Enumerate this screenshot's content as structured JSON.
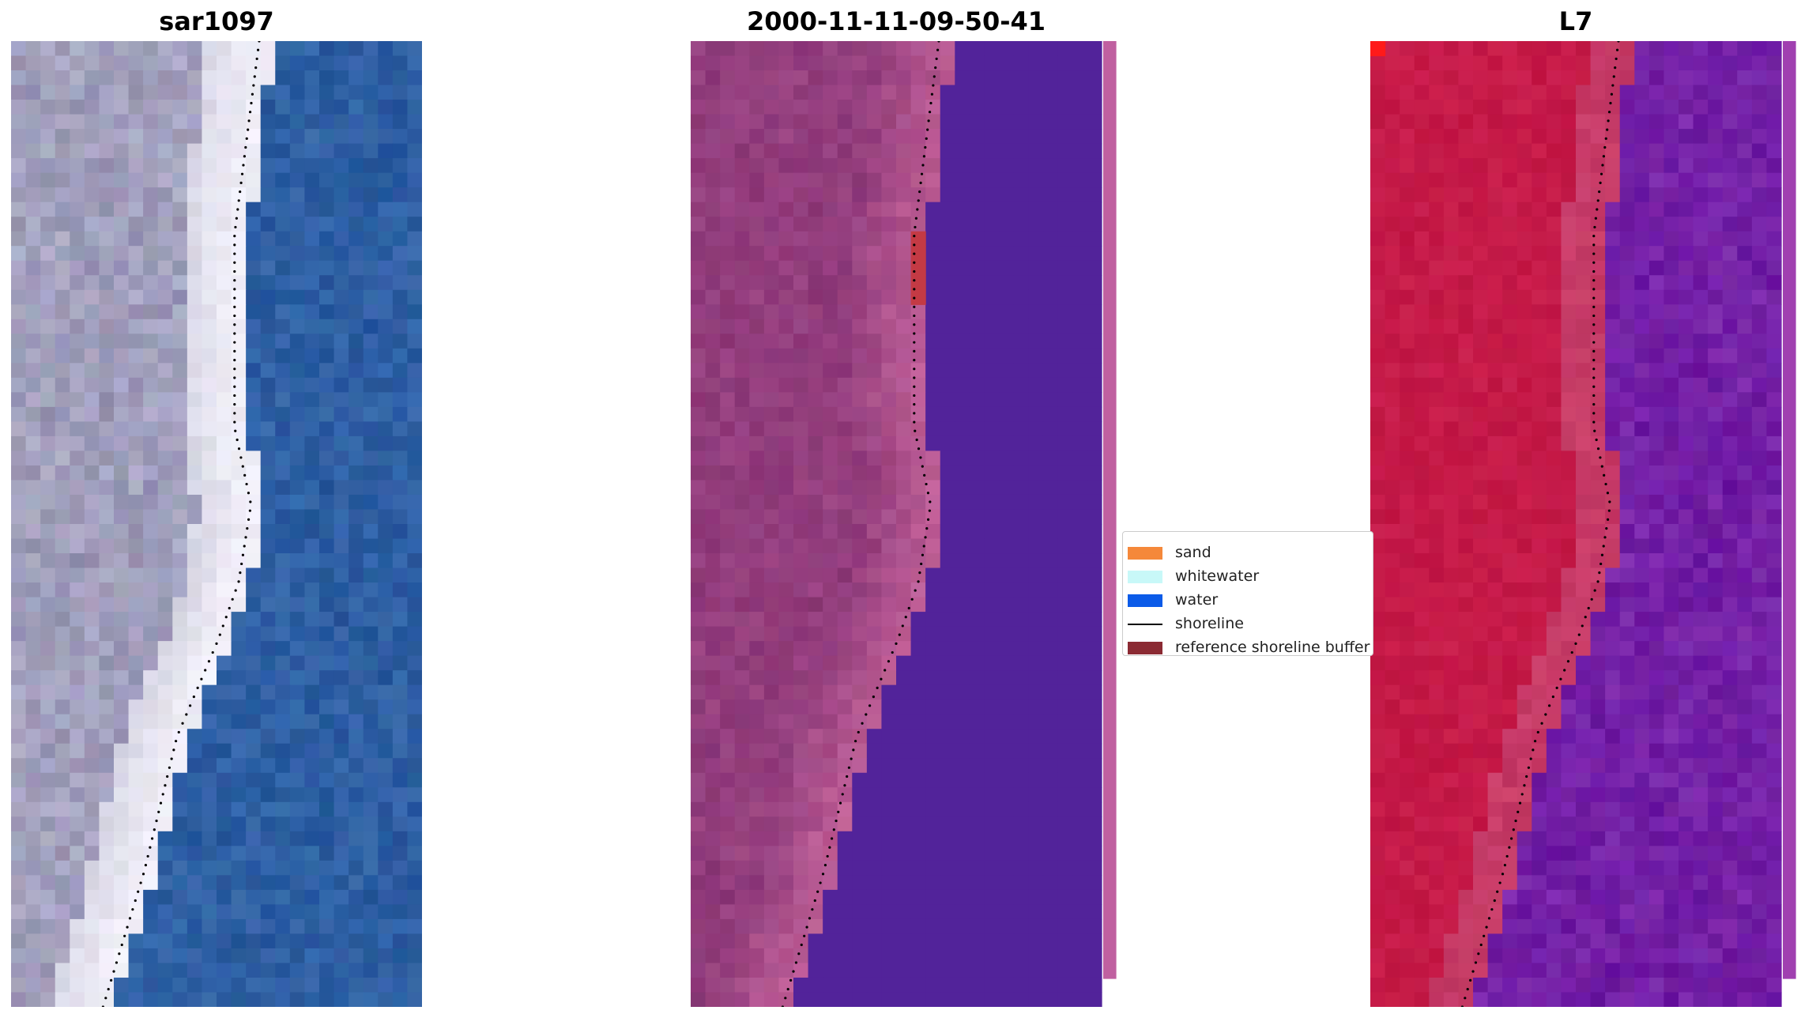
{
  "panels": [
    {
      "title": "sar1097",
      "style": "rgb"
    },
    {
      "title": "2000-11-11-09-50-41",
      "style": "classified"
    },
    {
      "title": "L7",
      "style": "falsecolor"
    }
  ],
  "legend": {
    "items": [
      {
        "label": "sand",
        "kind": "patch",
        "color": "#f5883a"
      },
      {
        "label": "whitewater",
        "kind": "patch",
        "color": "#c8f8f8"
      },
      {
        "label": "water",
        "kind": "patch",
        "color": "#0b5be8"
      },
      {
        "label": "shoreline",
        "kind": "line",
        "color": "#000000"
      },
      {
        "label": "reference shoreline buffer",
        "kind": "patch",
        "color": "#8b2a33"
      }
    ]
  },
  "colors": {
    "sand_rgb": "#a6a6c0",
    "whitewater_rgb": "#f1eff8",
    "water_rgb": "#2e5fa3",
    "land_classified": "#8e3a7a",
    "land_classified_light": "#c46399",
    "water_classified": "#52239a",
    "flag_classified": "#c43a44",
    "land_falsecolor": "#c51a48",
    "water_falsecolor": "#7a27a8"
  }
}
